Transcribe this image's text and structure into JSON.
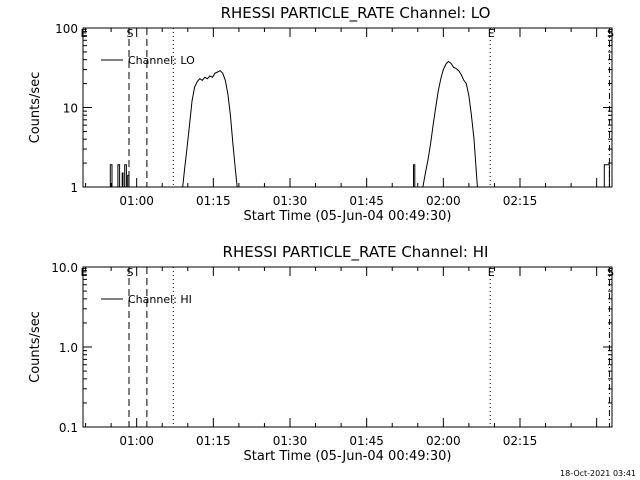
{
  "chart_data": [
    {
      "type": "line",
      "title": "RHESSI PARTICLE_RATE Channel: LO",
      "xlabel": "Start Time (05-Jun-04 00:49:30)",
      "ylabel": "Counts/sec",
      "y_scale": "log",
      "ylim": [
        1,
        100
      ],
      "xlim": [
        "00:49:30",
        "02:33:00"
      ],
      "x_tick_labels": [
        "01:00",
        "01:15",
        "01:30",
        "01:45",
        "02:00",
        "02:15"
      ],
      "y_tick_labels": [
        "1",
        "10",
        "100"
      ],
      "legend": {
        "placement": "top-left",
        "entries": [
          "Channel: LO"
        ]
      },
      "markers": [
        {
          "label": "E",
          "time": "00:49:30",
          "style": "solid"
        },
        {
          "label": "S",
          "time": "00:58:30",
          "style": "dashed"
        },
        {
          "label": "",
          "time": "01:02:00",
          "style": "dashed"
        },
        {
          "label": "",
          "time": "01:07:10",
          "style": "dotted"
        },
        {
          "label": "E",
          "time": "02:09:10",
          "style": "dotted"
        },
        {
          "label": "S",
          "time": "02:32:30",
          "style": "dash-dot"
        }
      ],
      "series": [
        {
          "name": "Channel: LO",
          "points": [
            [
              "00:54:50",
              1
            ],
            [
              "00:54:50",
              1.9
            ],
            [
              "00:55:10",
              1.9
            ],
            [
              "00:55:10",
              1
            ],
            [
              "00:56:20",
              1
            ],
            [
              "00:56:20",
              1.9
            ],
            [
              "00:56:40",
              1.9
            ],
            [
              "00:56:40",
              1
            ],
            [
              "00:57:10",
              1
            ],
            [
              "00:57:10",
              1.5
            ],
            [
              "00:57:20",
              1.5
            ],
            [
              "00:57:20",
              1
            ],
            [
              "00:57:40",
              1
            ],
            [
              "00:57:40",
              1.9
            ],
            [
              "00:58:00",
              1.9
            ],
            [
              "00:58:00",
              1
            ],
            [
              "00:58:15",
              1
            ],
            [
              "00:58:15",
              1.4
            ],
            [
              "00:58:30",
              1.4
            ],
            [
              "00:58:30",
              1
            ]
          ]
        },
        {
          "name": "Channel: LO",
          "points": [
            [
              "01:09:00",
              1
            ],
            [
              "01:09:20",
              1.6
            ],
            [
              "01:09:50",
              3
            ],
            [
              "01:10:20",
              6
            ],
            [
              "01:10:50",
              12
            ],
            [
              "01:11:20",
              18
            ],
            [
              "01:11:50",
              21
            ],
            [
              "01:12:20",
              23
            ],
            [
              "01:12:50",
              22
            ],
            [
              "01:13:20",
              24
            ],
            [
              "01:13:50",
              23
            ],
            [
              "01:14:20",
              25
            ],
            [
              "01:14:50",
              24
            ],
            [
              "01:15:20",
              27
            ],
            [
              "01:15:50",
              28
            ],
            [
              "01:16:20",
              29
            ],
            [
              "01:16:50",
              27
            ],
            [
              "01:17:20",
              22
            ],
            [
              "01:17:50",
              15
            ],
            [
              "01:18:20",
              8
            ],
            [
              "01:18:50",
              3.5
            ],
            [
              "01:19:20",
              1.6
            ],
            [
              "01:19:40",
              1
            ]
          ]
        },
        {
          "name": "Channel: LO",
          "points": [
            [
              "01:54:10",
              1
            ],
            [
              "01:54:10",
              1.9
            ],
            [
              "01:54:25",
              1.9
            ],
            [
              "01:54:25",
              1
            ]
          ]
        },
        {
          "name": "Channel: LO",
          "points": [
            [
              "01:56:00",
              1
            ],
            [
              "01:56:30",
              1.5
            ],
            [
              "01:57:00",
              2.2
            ],
            [
              "01:57:30",
              3.5
            ],
            [
              "01:58:00",
              6
            ],
            [
              "01:58:30",
              10
            ],
            [
              "01:59:00",
              16
            ],
            [
              "01:59:30",
              23
            ],
            [
              "02:00:00",
              30
            ],
            [
              "02:00:30",
              35
            ],
            [
              "02:01:00",
              38
            ],
            [
              "02:01:30",
              36
            ],
            [
              "02:02:00",
              32
            ],
            [
              "02:02:30",
              31
            ],
            [
              "02:03:00",
              29
            ],
            [
              "02:03:30",
              26
            ],
            [
              "02:04:00",
              22
            ],
            [
              "02:04:30",
              20
            ],
            [
              "02:05:00",
              14
            ],
            [
              "02:05:30",
              8
            ],
            [
              "02:06:00",
              4
            ],
            [
              "02:06:20",
              2
            ],
            [
              "02:06:40",
              1
            ]
          ]
        },
        {
          "name": "Channel: LO",
          "points": [
            [
              "02:31:30",
              1
            ],
            [
              "02:31:30",
              1.9
            ],
            [
              "02:32:30",
              1.9
            ],
            [
              "02:32:30",
              1
            ]
          ]
        }
      ]
    },
    {
      "type": "line",
      "title": "RHESSI PARTICLE_RATE Channel: HI",
      "xlabel": "Start Time (05-Jun-04 00:49:30)",
      "ylabel": "Counts/sec",
      "y_scale": "log",
      "ylim": [
        0.1,
        10
      ],
      "xlim": [
        "00:49:30",
        "02:33:00"
      ],
      "x_tick_labels": [
        "01:00",
        "01:15",
        "01:30",
        "01:45",
        "02:00",
        "02:15"
      ],
      "y_tick_labels": [
        "0.1",
        "1.0",
        "10.0"
      ],
      "legend": {
        "placement": "top-left",
        "entries": [
          "Channel: HI"
        ]
      },
      "markers": [
        {
          "label": "E",
          "time": "00:49:30",
          "style": "solid"
        },
        {
          "label": "S",
          "time": "00:58:30",
          "style": "dashed"
        },
        {
          "label": "",
          "time": "01:02:00",
          "style": "dashed"
        },
        {
          "label": "",
          "time": "01:07:10",
          "style": "dotted"
        },
        {
          "label": "E",
          "time": "02:09:10",
          "style": "dotted"
        },
        {
          "label": "S",
          "time": "02:32:30",
          "style": "dash-dot"
        }
      ],
      "series": [
        {
          "name": "Channel: HI",
          "points": [
            [
              "02:32:10",
              1.0
            ],
            [
              "02:32:50",
              1.0
            ]
          ]
        }
      ]
    }
  ],
  "footer": {
    "timestamp": "18-Oct-2021 03:41"
  }
}
